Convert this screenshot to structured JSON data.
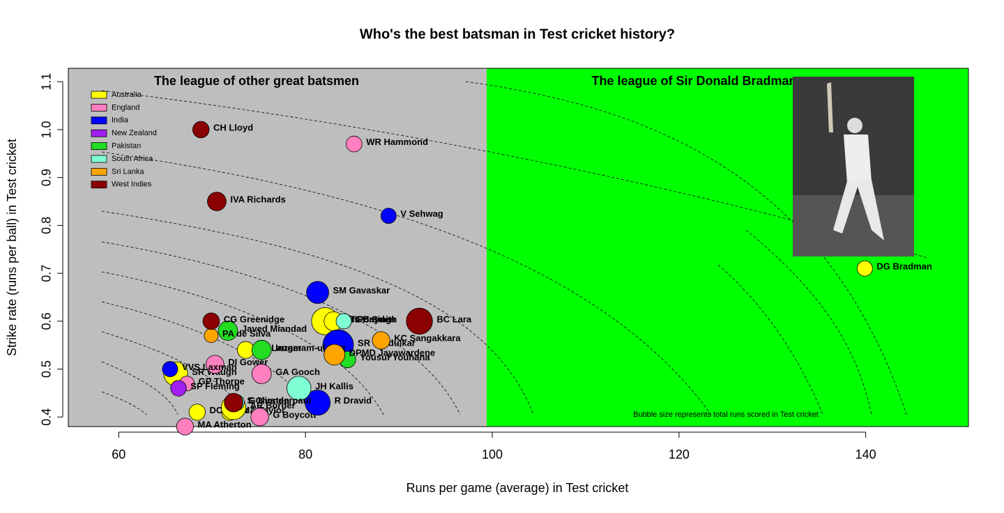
{
  "chart_data": {
    "type": "scatter",
    "title": "Who's the best batsman in Test cricket history?",
    "xlabel": "Runs per game (average) in Test cricket",
    "ylabel": "Strike rate (runs per ball) in Test cricket",
    "xlim": [
      54.6,
      151
    ],
    "ylim": [
      0.38,
      1.128
    ],
    "xticks": [
      60,
      80,
      100,
      120,
      140
    ],
    "yticks": [
      0.4,
      0.5,
      0.6,
      0.7,
      0.8,
      0.9,
      {
        "value": 1,
        "label": "1.0"
      },
      1.1
    ],
    "regions": [
      {
        "title": "The league of other great batsmen",
        "color": "#bebebe",
        "xmin": 54.6,
        "xmax": 99.4
      },
      {
        "title": "The league of Sir Donald Bradman",
        "color": "#00ff00",
        "xmin": 99.4,
        "xmax": 151
      }
    ],
    "annotation": "Bubble size represents total runs scored in Test cricket",
    "legend": "top-left",
    "series": [
      {
        "name": "Australia",
        "color": "#ffff00",
        "labels": [
          "DG Bradman",
          "RT Ponting",
          "ML Hayden",
          "JL Langer",
          "SR Waugh",
          "DC Boon",
          "MA Taylor",
          "AR Border"
        ],
        "x": [
          139.9,
          82.1,
          83.0,
          73.6,
          66.1,
          68.4,
          71.9,
          72.3
        ],
        "values": [
          0.71,
          0.6,
          0.6,
          0.54,
          0.49,
          0.41,
          0.41,
          0.42
        ],
        "sizes": [
          6996,
          12363,
          8625,
          7696,
          10927,
          7422,
          7525,
          11174
        ]
      },
      {
        "name": "England",
        "color": "#ff7fbf",
        "labels": [
          "WR Hammond",
          "DI Gower",
          "GA Gooch",
          "GP Thorpe",
          "G Boycott",
          "MA Atherton"
        ],
        "x": [
          85.2,
          70.3,
          75.3,
          67.3,
          75.1,
          67.1
        ],
        "values": [
          0.97,
          0.51,
          0.49,
          0.47,
          0.4,
          0.38
        ],
        "sizes": [
          7249,
          8231,
          8900,
          6744,
          8114,
          7728
        ]
      },
      {
        "name": "India",
        "color": "#0000ff",
        "labels": [
          "V Sehwag",
          "SM Gavaskar",
          "SR Tendulkar",
          "VVS Laxman",
          "R Dravid"
        ],
        "x": [
          88.9,
          81.3,
          83.5,
          65.5,
          81.3
        ],
        "values": [
          0.82,
          0.66,
          0.55,
          0.5,
          0.43
        ],
        "sizes": [
          7000,
          10122,
          14000,
          7000,
          11500
        ]
      },
      {
        "name": "New Zealand",
        "color": "#a020f0",
        "labels": [
          "SP Fleming"
        ],
        "x": [
          66.4
        ],
        "values": [
          0.46
        ],
        "sizes": [
          7172
        ]
      },
      {
        "name": "Pakistan",
        "color": "#22dd22",
        "labels": [
          "Javed Miandad",
          "Inzamam-ul-Haq",
          "Yousuf Youhana"
        ],
        "x": [
          71.7,
          75.3,
          84.5
        ],
        "values": [
          0.58,
          0.54,
          0.52
        ],
        "sizes": [
          8832,
          8830,
          7530
        ]
      },
      {
        "name": "South Africa",
        "color": "#7fffd4",
        "labels": [
          "GC Smith",
          "JH Kallis",
          "G Kirsten"
        ],
        "x": [
          84.1,
          79.3,
          72.6
        ],
        "values": [
          0.6,
          0.46,
          0.43
        ],
        "sizes": [
          7000,
          11000,
          7289
        ]
      },
      {
        "name": "Sri Lanka",
        "color": "#ffa500",
        "labels": [
          "PA de Silva",
          "KC Sangakkara",
          "DPMD Jayawardene"
        ],
        "x": [
          69.9,
          88.1,
          83.1
        ],
        "values": [
          0.57,
          0.56,
          0.53
        ],
        "sizes": [
          6361,
          8000,
          9500
        ]
      },
      {
        "name": "West Indies",
        "color": "#8b0000",
        "labels": [
          "CH Lloyd",
          "IVA Richards",
          "BC Lara",
          "CG Greenidge",
          "S Chanderpaul"
        ],
        "x": [
          68.8,
          70.5,
          92.2,
          69.9,
          72.3
        ],
        "values": [
          1.0,
          0.85,
          0.6,
          0.6,
          0.43
        ],
        "sizes": [
          7515,
          8540,
          11953,
          7558,
          8500
        ]
      }
    ]
  }
}
